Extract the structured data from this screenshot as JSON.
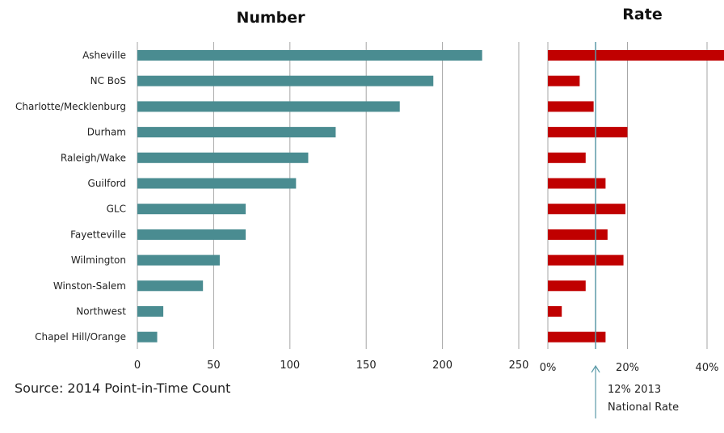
{
  "source": "Source: 2014 Point-in-Time Count",
  "annotation": {
    "line1": "12% 2013",
    "line2": "National Rate"
  },
  "colors": {
    "number_bar": "#4a8c91",
    "rate_bar": "#c00000",
    "grid": "#a6a6a6",
    "reference_line": "#5b9aa8"
  },
  "chart_data": [
    {
      "type": "bar",
      "orientation": "horizontal",
      "title": "Number",
      "categories": [
        "Asheville",
        "NC BoS",
        "Charlotte/Mecklenburg",
        "Durham",
        "Raleigh/Wake",
        "Guilford",
        "GLC",
        "Fayetteville",
        "Wilmington",
        "Winston-Salem",
        "Northwest",
        "Chapel Hill/Orange"
      ],
      "values": [
        226,
        194,
        172,
        130,
        112,
        104,
        71,
        71,
        54,
        43,
        17,
        13
      ],
      "xlim": [
        0,
        250
      ],
      "xticks": [
        0,
        50,
        100,
        150,
        200,
        250
      ],
      "xtick_labels": [
        "0",
        "50",
        "100",
        "150",
        "200",
        "250"
      ],
      "grid": true
    },
    {
      "type": "bar",
      "orientation": "horizontal",
      "title": "Rate",
      "categories": [
        "Asheville",
        "NC BoS",
        "Charlotte/Mecklenburg",
        "Durham",
        "Raleigh/Wake",
        "Guilford",
        "GLC",
        "Fayetteville",
        "Wilmington",
        "Winston-Salem",
        "Northwest",
        "Chapel Hill/Orange"
      ],
      "values": [
        45,
        8,
        11.5,
        20,
        9.5,
        14.5,
        19.5,
        15,
        19,
        9.5,
        3.5,
        14.5
      ],
      "xlim": [
        0,
        44
      ],
      "xticks": [
        0,
        20,
        40
      ],
      "xtick_labels": [
        "0%",
        "20%",
        "40%"
      ],
      "reference_value": 12,
      "grid": true
    }
  ]
}
